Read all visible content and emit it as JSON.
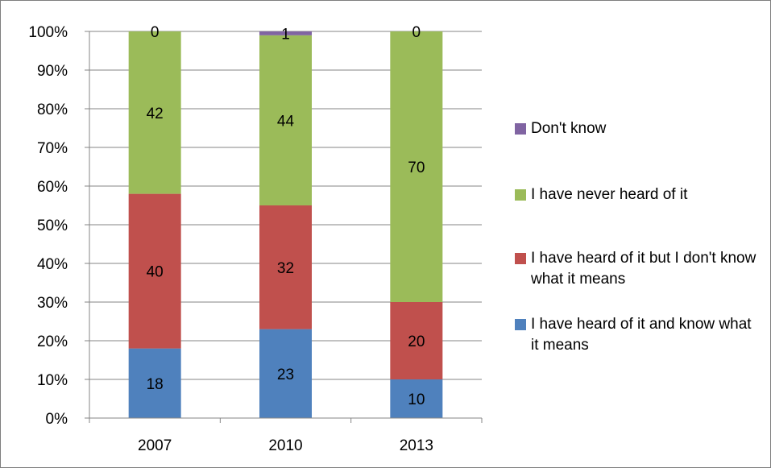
{
  "chart_data": {
    "type": "bar",
    "stacked": true,
    "categories": [
      "2007",
      "2010",
      "2013"
    ],
    "series": [
      {
        "name": "I have heard of it and know what it means",
        "color": "#4f81bd",
        "values": [
          18,
          23,
          10
        ]
      },
      {
        "name": "I have heard of it but I don't know what it means",
        "color": "#c0504d",
        "values": [
          40,
          32,
          20
        ]
      },
      {
        "name": "I have never heard of it",
        "color": "#9bbb59",
        "values": [
          42,
          44,
          70
        ]
      },
      {
        "name": "Don't know",
        "color": "#8064a2",
        "values": [
          0,
          1,
          0
        ]
      }
    ],
    "yticks": [
      "0%",
      "10%",
      "20%",
      "30%",
      "40%",
      "50%",
      "60%",
      "70%",
      "80%",
      "90%",
      "100%"
    ],
    "ylim": [
      0,
      100
    ],
    "grid": true,
    "legend_position": "right",
    "data_labels": true
  },
  "legend": {
    "items": [
      {
        "label": "Don't know",
        "color": "#8064a2"
      },
      {
        "label": "I have never heard of it",
        "color": "#9bbb59"
      },
      {
        "label": "I have heard of it but I don't know what it means",
        "color": "#c0504d"
      },
      {
        "label": "I have heard of it and know what it means",
        "color": "#4f81bd"
      }
    ]
  }
}
